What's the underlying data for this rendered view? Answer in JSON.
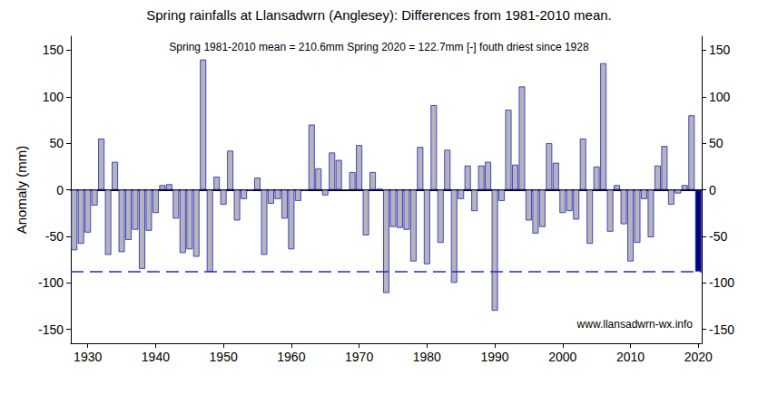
{
  "chart_data": {
    "type": "bar",
    "title": "Spring rainfalls at Llansadwrn (Anglesey): Differences from 1981-2010 mean.",
    "annotations": [
      "Spring 1981-2010 mean = 210.6mm Spring 2020 = 122.7mm [-] fouth driest since 1928",
      "www.llansadwrn-wx.info"
    ],
    "ylabel": "Anomaly (mm)",
    "categories": [
      null,
      null,
      "1930",
      null,
      null,
      null,
      null,
      null,
      null,
      null,
      null,
      null,
      "1940",
      null,
      null,
      null,
      null,
      null,
      null,
      null,
      null,
      null,
      "1950",
      null,
      null,
      null,
      null,
      null,
      null,
      null,
      null,
      null,
      "1960",
      null,
      null,
      null,
      null,
      null,
      null,
      null,
      null,
      null,
      "1970",
      null,
      null,
      null,
      null,
      null,
      null,
      null,
      null,
      null,
      "1980",
      null,
      null,
      null,
      null,
      null,
      null,
      null,
      null,
      null,
      "1990",
      null,
      null,
      null,
      null,
      null,
      null,
      null,
      null,
      null,
      "2000",
      null,
      null,
      null,
      null,
      null,
      null,
      null,
      null,
      null,
      "2010",
      null,
      null,
      null,
      null,
      null,
      null,
      null,
      null,
      null,
      "2020"
    ],
    "values": [
      -65,
      -58,
      -46,
      -17,
      55,
      -70,
      30,
      -67,
      -54,
      -43,
      -85,
      -44,
      -25,
      5,
      6,
      -31,
      -68,
      -64,
      -72,
      140,
      -88,
      14,
      -16,
      42,
      -33,
      -10,
      -1,
      13,
      -70,
      -15,
      -10,
      -31,
      -64,
      -12,
      -1,
      70,
      23,
      -6,
      40,
      32,
      0,
      19,
      48,
      -49,
      19,
      1,
      -111,
      -40,
      -41,
      -43,
      -77,
      46,
      -80,
      91,
      -57,
      43,
      -100,
      -10,
      26,
      -23,
      26,
      30,
      -130,
      -12,
      86,
      27,
      111,
      -33,
      -47,
      -40,
      50,
      29,
      -25,
      -23,
      -32,
      55,
      -58,
      25,
      136,
      -45,
      5,
      -37,
      -77,
      -57,
      -10,
      -51,
      26,
      47,
      -16,
      -4,
      5,
      80,
      -87.9
    ],
    "colors": [
      "#b4b4bc",
      "#b4b4bc",
      "#b4b4bc",
      "#b4b4bc",
      "#b4b4bc",
      "#b4b4bc",
      "#b4b4bc",
      "#b4b4bc",
      "#b4b4bc",
      "#b4b4bc",
      "#b4b4bc",
      "#b4b4bc",
      "#b4b4bc",
      "#b4b4bc",
      "#b4b4bc",
      "#b4b4bc",
      "#b4b4bc",
      "#b4b4bc",
      "#b4b4bc",
      "#b4b4bc",
      "#b4b4bc",
      "#b4b4bc",
      "#b4b4bc",
      "#b4b4bc",
      "#b4b4bc",
      "#b4b4bc",
      "#b4b4bc",
      "#b4b4bc",
      "#b4b4bc",
      "#b4b4bc",
      "#b4b4bc",
      "#b4b4bc",
      "#b4b4bc",
      "#b4b4bc",
      "#b4b4bc",
      "#b4b4bc",
      "#b4b4bc",
      "#b4b4bc",
      "#b4b4bc",
      "#b4b4bc",
      "#b4b4bc",
      "#b4b4bc",
      "#b4b4bc",
      "#b4b4bc",
      "#b4b4bc",
      "#b4b4bc",
      "#b4b4bc",
      "#b4b4bc",
      "#b4b4bc",
      "#b4b4bc",
      "#b4b4bc",
      "#b4b4bc",
      "#b4b4bc",
      "#b4b4bc",
      "#b4b4bc",
      "#b4b4bc",
      "#b4b4bc",
      "#b4b4bc",
      "#b4b4bc",
      "#b4b4bc",
      "#b4b4bc",
      "#b4b4bc",
      "#b4b4bc",
      "#b4b4bc",
      "#b4b4bc",
      "#b4b4bc",
      "#b4b4bc",
      "#b4b4bc",
      "#b4b4bc",
      "#b4b4bc",
      "#b4b4bc",
      "#b4b4bc",
      "#b4b4bc",
      "#b4b4bc",
      "#b4b4bc",
      "#b4b4bc",
      "#b4b4bc",
      "#b4b4bc",
      "#b4b4bc",
      "#b4b4bc",
      "#b4b4bc",
      "#b4b4bc",
      "#b4b4bc",
      "#b4b4bc",
      "#b4b4bc",
      "#b4b4bc",
      "#b4b4bc",
      "#b4b4bc",
      "#b4b4bc",
      "#b4b4bc",
      "#b4b4bc",
      "#b4b4bc",
      "#000080"
    ],
    "reference_line": -87.9,
    "ylim": [
      -165,
      165
    ],
    "yticks": [
      -150,
      -100,
      -50,
      0,
      50,
      100,
      150
    ],
    "grid": false
  }
}
